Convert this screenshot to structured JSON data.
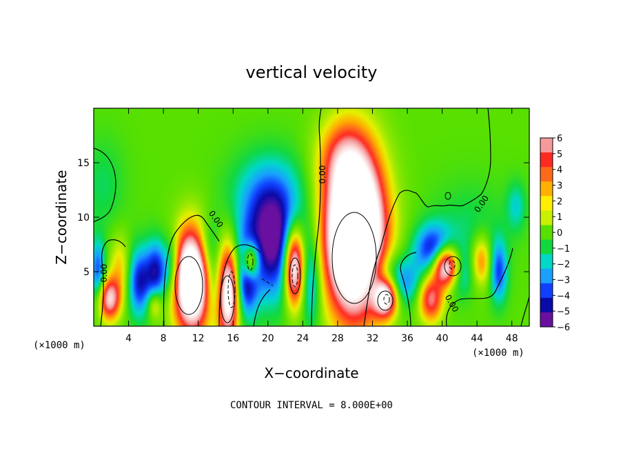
{
  "chart_data": {
    "type": "heatmap",
    "title": "vertical velocity",
    "xlabel": "X−coordinate",
    "ylabel": "Z−coordinate",
    "x_unit": "(×1000 m)",
    "x_unit_right": "(×1000 m)",
    "xlim": [
      0,
      50
    ],
    "ylim": [
      0,
      20
    ],
    "x_ticks": [
      4,
      8,
      12,
      16,
      20,
      24,
      28,
      32,
      36,
      40,
      44,
      48
    ],
    "y_ticks": [
      5,
      10,
      15
    ],
    "x_tick_labels": [
      "4",
      "8",
      "12",
      "16",
      "20",
      "24",
      "28",
      "32",
      "36",
      "40",
      "44",
      "48"
    ],
    "y_tick_labels": [
      "5",
      "10",
      "15"
    ],
    "colorbar": {
      "min": -6,
      "max": 6,
      "labels": [
        "6",
        "5",
        "4",
        "3",
        "2",
        "1",
        "0",
        "−1",
        "−2",
        "−3",
        "−4",
        "−5",
        "−6"
      ],
      "colors": [
        "#f59a9a",
        "#ff2a22",
        "#ff6a1a",
        "#ffb000",
        "#ffee00",
        "#c8f000",
        "#58e000",
        "#12d840",
        "#00d8c8",
        "#1aa0ff",
        "#1040ff",
        "#0a0aa8",
        "#6a10a0"
      ]
    },
    "contour_labels": [
      "0.00",
      "0.00",
      "0.00",
      "0.00",
      "0.00",
      "0.00"
    ],
    "footer": "CONTOUR INTERVAL = 8.000E+00",
    "cells": [
      {
        "x": 1.8,
        "z": 2.5,
        "sx": 0.9,
        "sz": 1.4,
        "a": 7
      },
      {
        "x": 3.0,
        "z": 5.5,
        "sx": 0.8,
        "sz": 2.0,
        "a": 2.5
      },
      {
        "x": 5.2,
        "z": 4.0,
        "sx": 0.9,
        "sz": 2.2,
        "a": -4.5
      },
      {
        "x": 7.0,
        "z": 2.0,
        "sx": 0.6,
        "sz": 1.0,
        "a": 3
      },
      {
        "x": 7.2,
        "z": 5.0,
        "sx": 0.9,
        "sz": 2.0,
        "a": -5
      },
      {
        "x": 11.3,
        "z": 4.2,
        "sx": 1.5,
        "sz": 3.2,
        "a": 13
      },
      {
        "x": 9.0,
        "z": 5.5,
        "sx": 0.7,
        "sz": 2.0,
        "a": -3
      },
      {
        "x": 13.2,
        "z": 7.0,
        "sx": 1.0,
        "sz": 2.0,
        "a": -3
      },
      {
        "x": 14.0,
        "z": 3.5,
        "sx": 1.0,
        "sz": 2.0,
        "a": -3
      },
      {
        "x": 15.4,
        "z": 3.0,
        "sx": 0.9,
        "sz": 3.0,
        "a": 10
      },
      {
        "x": 17.5,
        "z": 4.5,
        "sx": 0.9,
        "sz": 2.5,
        "a": -5
      },
      {
        "x": 18.0,
        "z": 6.0,
        "sx": 0.7,
        "sz": 1.2,
        "a": 7
      },
      {
        "x": 20.5,
        "z": 7.5,
        "sx": 2.2,
        "sz": 3.5,
        "a": -6
      },
      {
        "x": 20.0,
        "z": 12.0,
        "sx": 3.0,
        "sz": 2.8,
        "a": -2.5
      },
      {
        "x": 23.0,
        "z": 5.5,
        "sx": 0.8,
        "sz": 2.5,
        "a": 10
      },
      {
        "x": 25.0,
        "z": 4.0,
        "sx": 0.8,
        "sz": 3.0,
        "a": -3
      },
      {
        "x": 30.0,
        "z": 8.5,
        "sx": 2.3,
        "sz": 5.0,
        "a": 17
      },
      {
        "x": 28.5,
        "z": 15.5,
        "sx": 2.0,
        "sz": 2.5,
        "a": 3
      },
      {
        "x": 33.5,
        "z": 2.7,
        "sx": 1.0,
        "sz": 1.3,
        "a": 10
      },
      {
        "x": 33.5,
        "z": 4.0,
        "sx": 1.8,
        "sz": 1.8,
        "a": -4
      },
      {
        "x": 36.0,
        "z": 4.0,
        "sx": 1.5,
        "sz": 1.5,
        "a": -2
      },
      {
        "x": 38.7,
        "z": 2.5,
        "sx": 1.0,
        "sz": 1.5,
        "a": 6
      },
      {
        "x": 40.5,
        "z": 5.5,
        "sx": 1.1,
        "sz": 1.3,
        "a": 10
      },
      {
        "x": 39.0,
        "z": 7.0,
        "sx": 1.5,
        "sz": 1.6,
        "a": -5
      },
      {
        "x": 42.0,
        "z": 5.0,
        "sx": 1.0,
        "sz": 1.5,
        "a": -3
      },
      {
        "x": 44.5,
        "z": 6.0,
        "sx": 0.8,
        "sz": 1.6,
        "a": 4
      },
      {
        "x": 46.5,
        "z": 5.0,
        "sx": 0.7,
        "sz": 2.0,
        "a": -4
      },
      {
        "x": 48.5,
        "z": 11.0,
        "sx": 0.8,
        "sz": 1.6,
        "a": -2
      },
      {
        "x": 0.5,
        "z": 5.0,
        "sx": 0.6,
        "sz": 2.0,
        "a": -4
      },
      {
        "x": 1.0,
        "z": 13.0,
        "sx": 1.8,
        "sz": 3.0,
        "a": -1.2
      },
      {
        "x": 43.0,
        "z": 9.0,
        "sx": 3.0,
        "sz": 3.0,
        "a": -1.2
      }
    ]
  }
}
